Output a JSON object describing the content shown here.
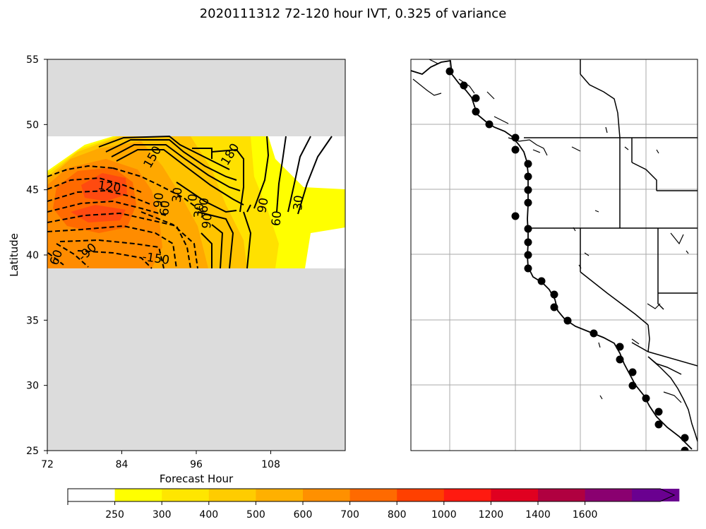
{
  "title": "2020111312 72-120 hour IVT, 0.325 of variance",
  "chart_data": [
    {
      "type": "heatmap",
      "panel": "left",
      "xlabel": "Forecast Hour",
      "ylabel": "Latitude",
      "xlim": [
        72,
        120
      ],
      "ylim": [
        25,
        55
      ],
      "xticks": [
        72,
        84,
        96,
        108
      ],
      "yticks": [
        25,
        30,
        35,
        40,
        45,
        50,
        55
      ],
      "data_lat_range": [
        39,
        49
      ],
      "masked_color": "#dcdcdc",
      "contour_labels": [
        {
          "text": "150",
          "x": 89,
          "y": 47.5,
          "rot": -60
        },
        {
          "text": "180",
          "x": 101.5,
          "y": 47.7,
          "rot": -58
        },
        {
          "text": "120",
          "x": 82,
          "y": 45.2,
          "rot": 8
        },
        {
          "text": "90",
          "x": 90,
          "y": 44.2,
          "rot": -85
        },
        {
          "text": "60",
          "x": 91,
          "y": 43.6,
          "rot": -85
        },
        {
          "text": "30",
          "x": 93,
          "y": 44.6,
          "rot": -85
        },
        {
          "text": "0",
          "x": 95.5,
          "y": 44.4,
          "rot": -85
        },
        {
          "text": "30",
          "x": 96.5,
          "y": 43.4,
          "rot": -85
        },
        {
          "text": "60",
          "x": 97.3,
          "y": 43.8,
          "rot": -85
        },
        {
          "text": "90",
          "x": 97.8,
          "y": 42.6,
          "rot": -85
        },
        {
          "text": "90",
          "x": 106.8,
          "y": 43.8,
          "rot": -80
        },
        {
          "text": "60",
          "x": 109,
          "y": 42.8,
          "rot": -85
        },
        {
          "text": "30",
          "x": 112.5,
          "y": 44.0,
          "rot": -85
        },
        {
          "text": "-90",
          "x": 78.5,
          "y": 40.2,
          "rot": -42
        },
        {
          "text": "-150",
          "x": 89.5,
          "y": 39.7,
          "rot": 8
        },
        {
          "text": "60",
          "x": 73.5,
          "y": 39.8,
          "rot": -70
        }
      ]
    },
    {
      "type": "map",
      "panel": "right",
      "marker": "filled-circle",
      "gridlines": true
    }
  ],
  "colorbar": {
    "ticks": [
      "250",
      "300",
      "400",
      "500",
      "600",
      "700",
      "800",
      "1000",
      "1200",
      "1400",
      "1600"
    ],
    "colors": [
      "#ffffff",
      "#ffff00",
      "#ffe600",
      "#ffcc00",
      "#ffb000",
      "#ff9000",
      "#ff6a00",
      "#ff4000",
      "#ff1a10",
      "#e00020",
      "#b00040",
      "#8a0070",
      "#6a0090"
    ],
    "extend": "max"
  }
}
